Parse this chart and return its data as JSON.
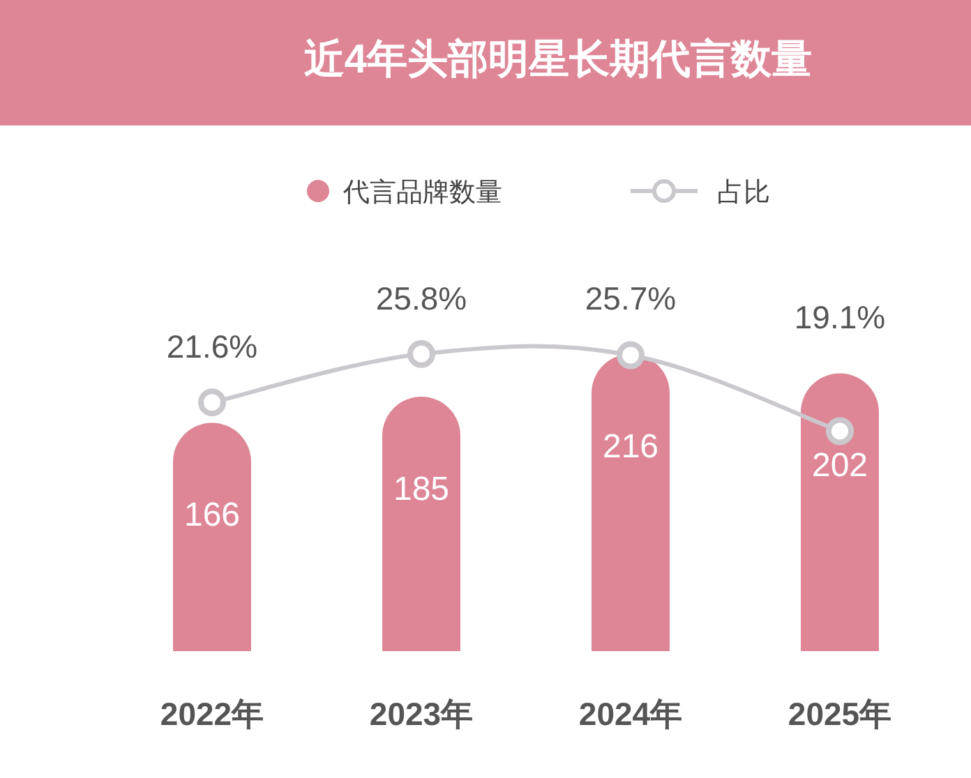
{
  "chart_data": {
    "type": "bar",
    "title": "近4年头部明星长期代言数量",
    "categories": [
      "2022年",
      "2023年",
      "2024年",
      "2025年"
    ],
    "data_labels": true,
    "legend": "top",
    "series": [
      {
        "name": "代言品牌数量",
        "color": "#de8696",
        "values": [
          166,
          185,
          216,
          202
        ]
      },
      {
        "name": "占比",
        "type": "line",
        "axis": "y2",
        "color": "#cbc8cd",
        "marker": "circle",
        "values": [
          21.6,
          25.8,
          25.7,
          19.1
        ],
        "value_labels": [
          "21.6%",
          "25.8%",
          "25.7%",
          "19.1%"
        ]
      }
    ]
  }
}
